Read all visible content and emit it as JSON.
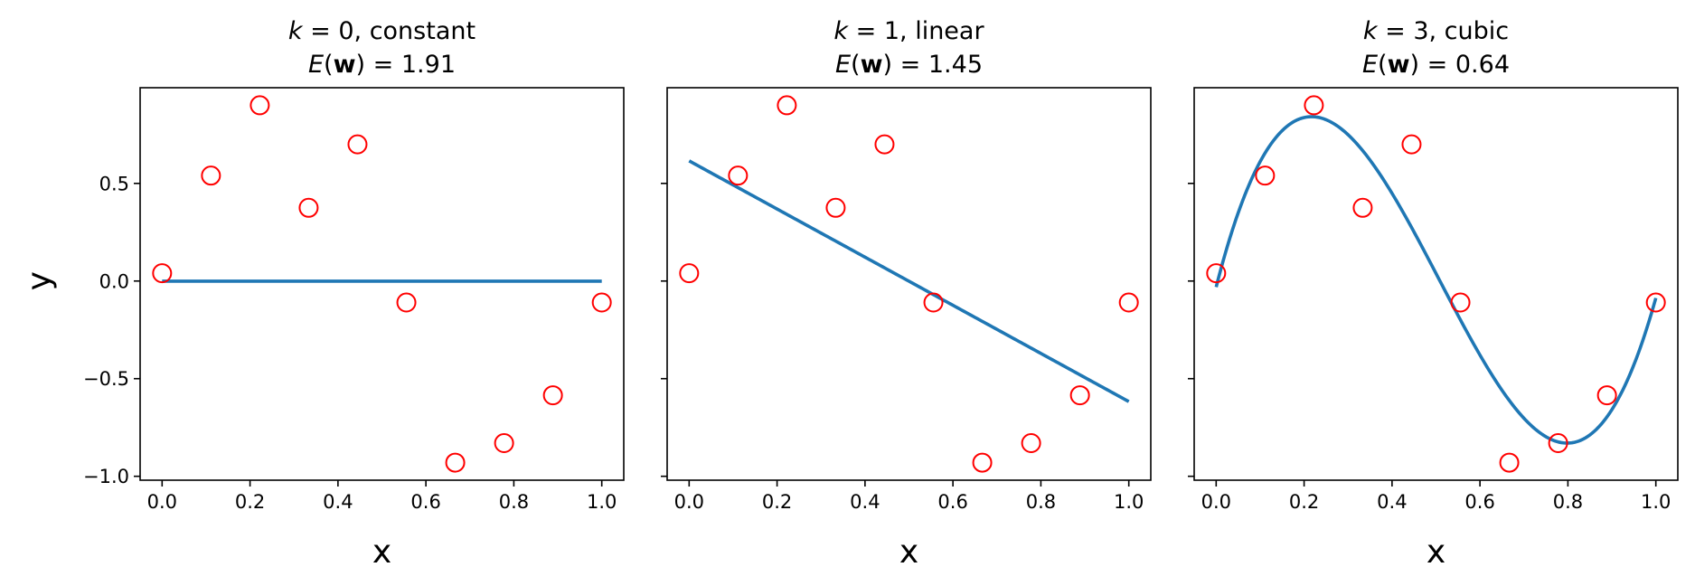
{
  "chart_data": [
    {
      "type": "scatter+line",
      "title_line1_var": "k",
      "title_line1_rest": " = 0, constant",
      "title_line2_var": "E",
      "title_line2_bold": "w",
      "title_line2_rest": " = 1.91",
      "degree": 0,
      "xlabel": "x",
      "ylabel": "y",
      "xlim": [
        -0.05,
        1.05
      ],
      "ylim": [
        -1.02,
        0.99
      ],
      "xticks": [
        "0.0",
        "0.2",
        "0.4",
        "0.6",
        "0.8",
        "1.0"
      ],
      "yticks": [
        "0.5",
        "0.0",
        "−0.5",
        "−1.0"
      ],
      "show_ytick_labels": true
    },
    {
      "type": "scatter+line",
      "title_line1_var": "k",
      "title_line1_rest": " = 1, linear",
      "title_line2_var": "E",
      "title_line2_bold": "w",
      "title_line2_rest": " = 1.45",
      "degree": 1,
      "xlabel": "x",
      "ylabel": "",
      "xlim": [
        -0.05,
        1.05
      ],
      "ylim": [
        -1.02,
        0.99
      ],
      "xticks": [
        "0.0",
        "0.2",
        "0.4",
        "0.6",
        "0.8",
        "1.0"
      ],
      "yticks": [
        "0.5",
        "0.0",
        "−0.5",
        "−1.0"
      ],
      "show_ytick_labels": false
    },
    {
      "type": "scatter+line",
      "title_line1_var": "k",
      "title_line1_rest": " = 3, cubic",
      "title_line2_var": "E",
      "title_line2_bold": "w",
      "title_line2_rest": " = 0.64",
      "degree": 3,
      "xlabel": "x",
      "ylabel": "",
      "xlim": [
        -0.05,
        1.05
      ],
      "ylim": [
        -1.02,
        0.99
      ],
      "xticks": [
        "0.0",
        "0.2",
        "0.4",
        "0.6",
        "0.8",
        "1.0"
      ],
      "yticks": [
        "0.5",
        "0.0",
        "−0.5",
        "−1.0"
      ],
      "show_ytick_labels": false
    }
  ],
  "points": {
    "x": [
      0.0,
      0.1111,
      0.2222,
      0.3333,
      0.4444,
      0.5556,
      0.6667,
      0.7778,
      0.8889,
      1.0
    ],
    "y": [
      0.04,
      0.54,
      0.9,
      0.375,
      0.7,
      -0.11,
      -0.93,
      -0.83,
      -0.585,
      -0.11
    ]
  },
  "xtick_values": [
    0,
    0.2,
    0.4,
    0.6,
    0.8,
    1.0
  ],
  "ytick_values": [
    0.5,
    0.0,
    -0.5,
    -1.0
  ],
  "colors": {
    "points": "#ff0000",
    "fit": "#1f77b4",
    "axes": "#000000"
  }
}
